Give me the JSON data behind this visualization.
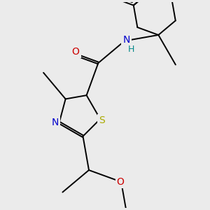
{
  "background_color": "#ebebeb",
  "figsize": [
    3.0,
    3.0
  ],
  "dpi": 100,
  "atom_colors": {
    "C": "#000000",
    "N": "#0000cc",
    "O": "#cc0000",
    "S": "#aaaa00",
    "NH_color": "#008888"
  },
  "bond_color": "#000000",
  "bond_lw": 1.4,
  "font_size": 10,
  "xlim": [
    -0.5,
    5.0
  ],
  "ylim": [
    -2.5,
    3.5
  ]
}
